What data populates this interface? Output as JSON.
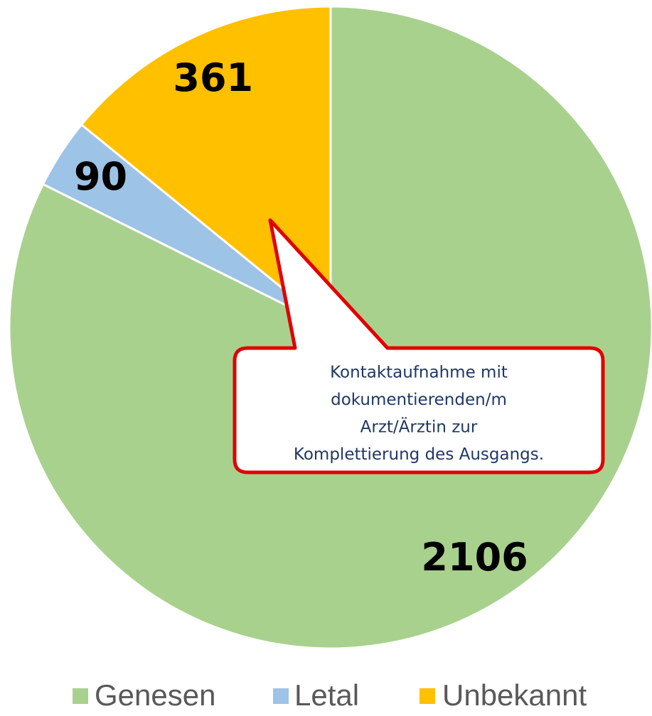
{
  "chart_data": {
    "type": "pie",
    "categories": [
      "Genesen",
      "Letal",
      "Unbekannt"
    ],
    "values": [
      2106,
      90,
      361
    ],
    "colors": [
      "#a9d18e",
      "#9dc3e6",
      "#ffc000"
    ],
    "legend": "bottom",
    "annotation": [
      "Kontaktaufnahme mit",
      "dokumentierenden/m",
      "Arzt/Ärztin zur",
      "Komplettierung des Ausgangs."
    ]
  }
}
